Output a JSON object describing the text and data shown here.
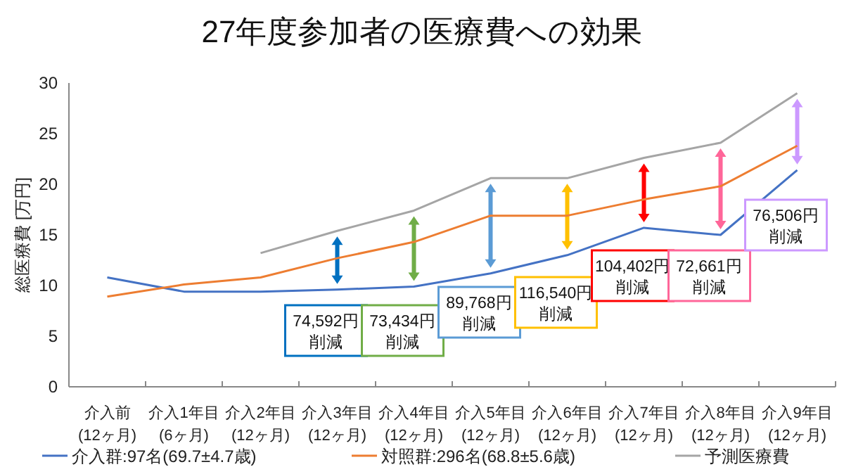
{
  "chart_data": {
    "type": "line",
    "title": "27年度参加者の医療費への効果",
    "ylabel": "総医療費 [万円]",
    "categories": [
      "介入前\n(12ヶ月)",
      "介入1年目\n(6ヶ月)",
      "介入2年目\n(12ヶ月)",
      "介入3年目\n(12ヶ月)",
      "介入4年目\n(12ヶ月)",
      "介入5年目\n(12ヶ月)",
      "介入6年目\n(12ヶ月)",
      "介入7年目\n(12ヶ月)",
      "介入8年目\n(12ヶ月)",
      "介入9年目\n(12ヶ月)"
    ],
    "series": [
      {
        "name": "介入群:97名(69.7±4.7歳)",
        "color": "#4472c4",
        "values": [
          10.8,
          9.4,
          9.4,
          9.6,
          9.9,
          11.2,
          13.0,
          15.7,
          15.0,
          21.4
        ]
      },
      {
        "name": "対照群:296名(68.8±5.6歳)",
        "color": "#ed7d31",
        "values": [
          8.9,
          10.1,
          10.8,
          12.7,
          14.3,
          16.9,
          16.9,
          18.5,
          19.8,
          23.8
        ]
      },
      {
        "name": "予測医療費",
        "color": "#a5a5a5",
        "values": [
          null,
          null,
          13.2,
          15.4,
          17.4,
          20.6,
          20.6,
          22.6,
          24.1,
          29.0
        ]
      }
    ],
    "ylim": [
      0,
      30
    ],
    "yticks": [
      0,
      5,
      10,
      15,
      20,
      25,
      30
    ],
    "grid": false,
    "legend": "bottom",
    "line_style": "solid",
    "annotations": [
      "74,592円削減",
      "73,434円削減",
      "89,768円削減",
      "116,540円削減",
      "104,402円削減",
      "72,661円削減",
      "76,506円削減"
    ]
  }
}
